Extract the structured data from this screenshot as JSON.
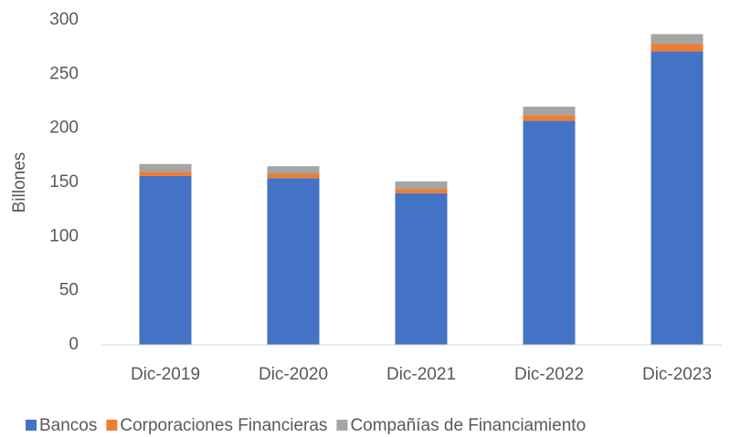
{
  "chart_data": {
    "type": "stacked_bar",
    "ylabel": "Billones",
    "categories": [
      "Dic-2019",
      "Dic-2020",
      "Dic-2021",
      "Dic-2022",
      "Dic-2023"
    ],
    "series": [
      {
        "name": "Bancos",
        "color": "#4472c4",
        "values": [
          156,
          154,
          140,
          207,
          271
        ]
      },
      {
        "name": "Corporaciones Financieras",
        "color": "#ed7d31",
        "values": [
          4,
          4,
          4,
          5,
          7
        ]
      },
      {
        "name": "Compañías de Financiamiento",
        "color": "#a5a5a5",
        "values": [
          7,
          7,
          7,
          8,
          9
        ]
      }
    ],
    "ylim": [
      0,
      300
    ],
    "yticks": [
      0,
      50,
      100,
      150,
      200,
      250,
      300
    ],
    "grid": false,
    "legend": "bottom"
  }
}
